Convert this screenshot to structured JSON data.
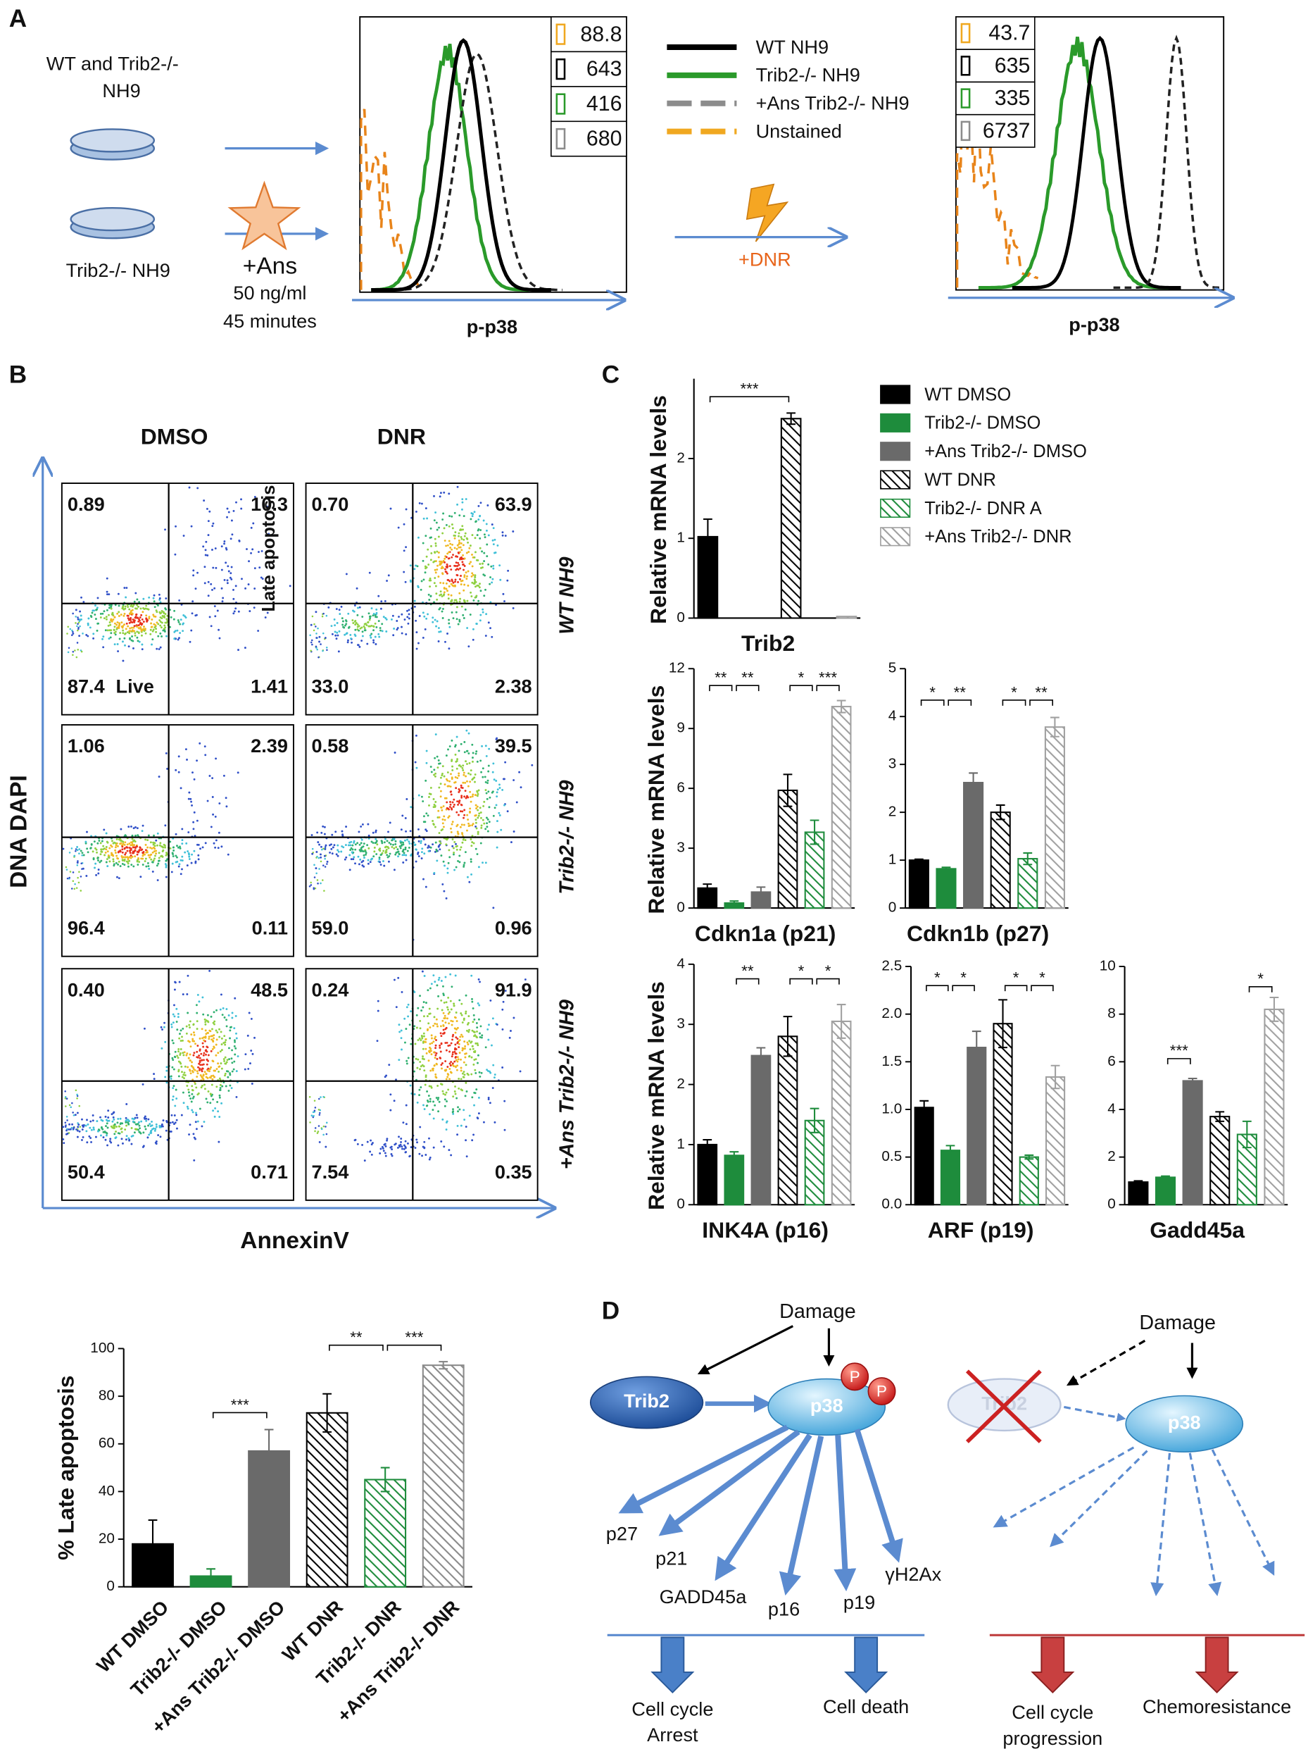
{
  "panel_a": {
    "label": "A",
    "dish_top": [
      "WT and Trib2-/-",
      "NH9"
    ],
    "dish_bottom": "Trib2-/- NH9",
    "treatment": [
      "+Ans",
      "50 ng/ml",
      "45 minutes"
    ],
    "before": {
      "values": [
        88.8,
        643,
        416,
        680
      ],
      "axis_label": "p-p38"
    },
    "after": {
      "values": [
        43.7,
        635,
        335,
        6737
      ],
      "axis_label": "p-p38"
    },
    "legend": [
      {
        "name": "WT NH9",
        "color": "#000000",
        "dashed": false
      },
      {
        "name": "Trib2-/- NH9",
        "color": "#2a9a2a",
        "dashed": false
      },
      {
        "name": "+Ans Trib2-/- NH9",
        "color": "#8c8c8c",
        "dashed": true
      },
      {
        "name": "Unstained",
        "color": "#f0a820",
        "dashed": true
      }
    ],
    "step": "+DNR"
  },
  "panel_b": {
    "label": "B",
    "columns": [
      "DMSO",
      "DNR"
    ],
    "rows": [
      "WT NH9",
      "Trib2-/- NH9",
      "+Ans Trib2-/- NH9"
    ],
    "y_axis": "DNA DAPI",
    "x_axis": "AnnexinV",
    "quadrant_late": "Late apoptosis",
    "quadrant_live": "Live",
    "plots": [
      [
        {
          "ul": "0.89",
          "ur": "10.3",
          "ll": "87.4",
          "lr": "1.41"
        },
        {
          "ul": "0.70",
          "ur": "63.9",
          "ll": "33.0",
          "lr": "2.38"
        }
      ],
      [
        {
          "ul": "1.06",
          "ur": "2.39",
          "ll": "96.4",
          "lr": "0.11"
        },
        {
          "ul": "0.58",
          "ur": "39.5",
          "ll": "59.0",
          "lr": "0.96"
        }
      ],
      [
        {
          "ul": "0.40",
          "ur": "48.5",
          "ll": "50.4",
          "lr": "0.71"
        },
        {
          "ul": "0.24",
          "ur": "91.9",
          "ll": "7.54",
          "lr": "0.35"
        }
      ]
    ]
  },
  "panel_c": {
    "label": "C",
    "legend": [
      "WT DMSO",
      "Trib2-/- DMSO",
      "+Ans Trib2-/- DMSO",
      "WT DNR",
      "Trib2-/- DNR A",
      "+Ans Trib2-/- DNR"
    ]
  },
  "chart_data": [
    {
      "type": "bar",
      "ylabel": "% Late apoptosis",
      "categories": [
        "WT DMSO",
        "Trib2-/- DMSO",
        "+Ans Trib2-/- DMSO",
        "WT DNR",
        "Trib2-/- DNR",
        "+Ans Trib2-/- DNR"
      ],
      "values": [
        18,
        4.5,
        57,
        73,
        45,
        93
      ],
      "errors": [
        10,
        3,
        9,
        8,
        5,
        1.5
      ],
      "colors": [
        "#000000",
        "#1e8c3c",
        "#6a6a6a",
        "#000000",
        "#1e8c3c",
        "#8a8a8a"
      ],
      "hatched": [
        false,
        false,
        false,
        true,
        true,
        true
      ],
      "ylim": [
        0,
        100
      ],
      "yticks": [
        0,
        20,
        40,
        60,
        80,
        100
      ],
      "significance": [
        "***",
        "**",
        "***"
      ]
    },
    {
      "type": "bar",
      "title": "Trib2",
      "ylabel": "Relative mRNA levels",
      "values": [
        1.02,
        0,
        0,
        2.5,
        0,
        0.02
      ],
      "errors": [
        0.22,
        0,
        0,
        0.07,
        0,
        0
      ],
      "colors": [
        "#000000",
        "#1e8c3c",
        "#6a6a6a",
        "#000000",
        "#1e8c3c",
        "#a0a0a0"
      ],
      "hatched": [
        false,
        false,
        false,
        true,
        true,
        true
      ],
      "ylim": [
        0,
        3
      ],
      "yticks": [
        0,
        1,
        2
      ],
      "significance": [
        "***"
      ]
    },
    {
      "type": "bar",
      "title": "Cdkn1a (p21)",
      "ylabel": "Relative mRNA levels",
      "values": [
        1.0,
        0.25,
        0.8,
        5.9,
        3.8,
        10.1
      ],
      "errors": [
        0.2,
        0.1,
        0.25,
        0.8,
        0.6,
        0.3
      ],
      "colors": [
        "#000000",
        "#1e8c3c",
        "#6a6a6a",
        "#000000",
        "#1e8c3c",
        "#a0a0a0"
      ],
      "hatched": [
        false,
        false,
        false,
        true,
        true,
        true
      ],
      "ylim": [
        0,
        12
      ],
      "yticks": [
        0,
        3,
        6,
        9,
        12
      ],
      "significance": [
        "**",
        "**",
        "*",
        "***"
      ]
    },
    {
      "type": "bar",
      "title": "Cdkn1b (p27)",
      "values": [
        1.0,
        0.82,
        2.62,
        2.0,
        1.03,
        3.78
      ],
      "errors": [
        0.02,
        0.03,
        0.2,
        0.15,
        0.12,
        0.2
      ],
      "colors": [
        "#000000",
        "#1e8c3c",
        "#6a6a6a",
        "#000000",
        "#1e8c3c",
        "#a0a0a0"
      ],
      "hatched": [
        false,
        false,
        false,
        true,
        true,
        true
      ],
      "ylim": [
        0,
        5
      ],
      "yticks": [
        0,
        1,
        2,
        3,
        4,
        5
      ],
      "significance": [
        "*",
        "**",
        "*",
        "**"
      ]
    },
    {
      "type": "bar",
      "title": "INK4A (p16)",
      "ylabel": "Relative mRNA levels",
      "values": [
        1.0,
        0.82,
        2.48,
        2.8,
        1.4,
        3.05
      ],
      "errors": [
        0.08,
        0.06,
        0.13,
        0.33,
        0.2,
        0.28
      ],
      "colors": [
        "#000000",
        "#1e8c3c",
        "#6a6a6a",
        "#000000",
        "#1e8c3c",
        "#a0a0a0"
      ],
      "hatched": [
        false,
        false,
        false,
        true,
        true,
        true
      ],
      "ylim": [
        0,
        4
      ],
      "yticks": [
        0,
        1,
        2,
        3,
        4
      ],
      "significance": [
        "**",
        "*",
        "*"
      ]
    },
    {
      "type": "bar",
      "title": "ARF (p19)",
      "values": [
        1.02,
        0.57,
        1.65,
        1.9,
        0.5,
        1.34
      ],
      "errors": [
        0.07,
        0.05,
        0.17,
        0.25,
        0.02,
        0.12
      ],
      "colors": [
        "#000000",
        "#1e8c3c",
        "#6a6a6a",
        "#000000",
        "#1e8c3c",
        "#a0a0a0"
      ],
      "hatched": [
        false,
        false,
        false,
        true,
        true,
        true
      ],
      "ylim": [
        0,
        2.5
      ],
      "yticks": [
        {
          "value": 0,
          "label": "0.0"
        },
        0.5,
        {
          "value": 1,
          "label": "1.0"
        },
        1.5,
        {
          "value": 2,
          "label": "2.0"
        },
        2.5
      ],
      "significance": [
        "*",
        "*",
        "*",
        "*"
      ]
    },
    {
      "type": "bar",
      "title": "Gadd45a",
      "values": [
        0.95,
        1.15,
        5.2,
        3.7,
        2.95,
        8.2
      ],
      "errors": [
        0.05,
        0.05,
        0.1,
        0.2,
        0.55,
        0.5
      ],
      "colors": [
        "#000000",
        "#1e8c3c",
        "#6a6a6a",
        "#000000",
        "#1e8c3c",
        "#a0a0a0"
      ],
      "hatched": [
        false,
        false,
        false,
        true,
        true,
        true
      ],
      "ylim": [
        0,
        10
      ],
      "yticks": [
        0,
        2,
        4,
        6,
        8,
        10
      ],
      "significance": [
        "***",
        "*"
      ]
    }
  ],
  "panel_d": {
    "label": "D",
    "left": {
      "damage": "Damage",
      "trib2": "Trib2",
      "p38": "p38",
      "phospho": [
        "P",
        "P"
      ],
      "targets": [
        "p27",
        "p21",
        "GADD45a",
        "p16",
        "p19",
        "γH2Ax"
      ],
      "outcomes": [
        [
          "Cell cycle",
          "Arrest"
        ],
        [
          "Cell death"
        ]
      ]
    },
    "right": {
      "damage": "Damage",
      "trib2": "Trib2",
      "p38": "p38",
      "outcomes": [
        [
          "Cell cycle",
          "progression"
        ],
        [
          "Chemoresistance"
        ]
      ]
    }
  }
}
